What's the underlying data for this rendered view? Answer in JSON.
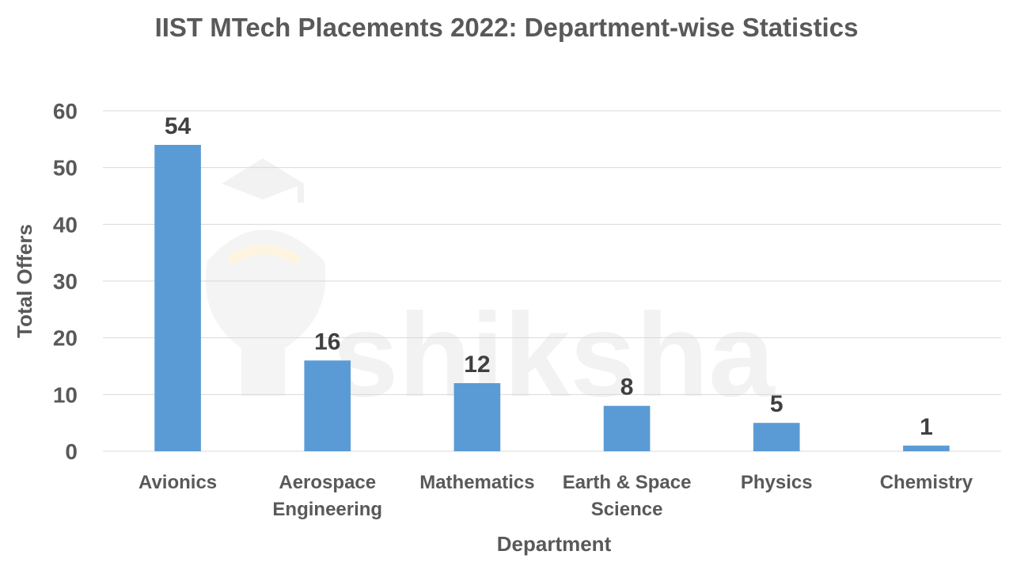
{
  "watermark": {
    "text": "shiksha"
  },
  "chart_data": {
    "type": "bar",
    "title": "IIST MTech Placements 2022: Department-wise Statistics",
    "xlabel": "Department",
    "ylabel": "Total Offers",
    "categories": [
      [
        "Avionics"
      ],
      [
        "Aerospace",
        "Engineering"
      ],
      [
        "Mathematics"
      ],
      [
        "Earth & Space",
        "Science"
      ],
      [
        "Physics"
      ],
      [
        "Chemistry"
      ]
    ],
    "values": [
      54,
      16,
      12,
      8,
      5,
      1
    ],
    "ylim": [
      0,
      60
    ],
    "yticks": [
      0,
      10,
      20,
      30,
      40,
      50,
      60
    ],
    "grid": true,
    "legend": "none",
    "bar_color": "#5b9bd5",
    "gridline_color": "#d9d9d9"
  }
}
